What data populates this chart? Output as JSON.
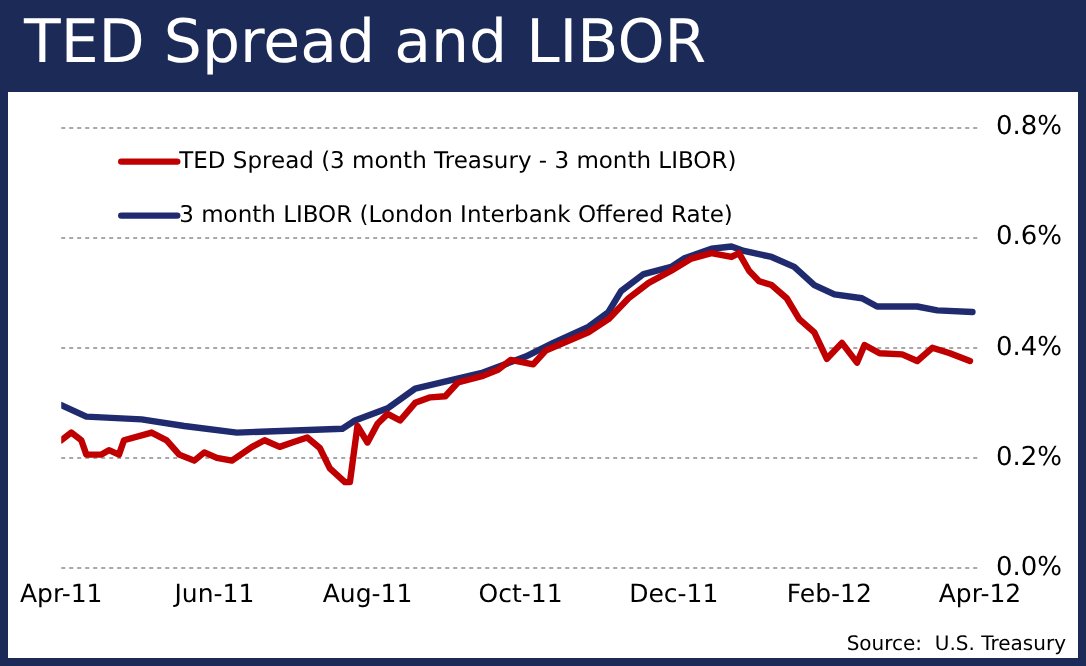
{
  "chart_data": {
    "type": "line",
    "title": "TED Spread and LIBOR",
    "series": [
      {
        "name": "TED Spread (3 month Treasury - 3 month LIBOR)",
        "color": "#c00000",
        "x": [
          "2011-04-01",
          "2011-04-05",
          "2011-04-09",
          "2011-04-11",
          "2011-04-17",
          "2011-04-20",
          "2011-04-24",
          "2011-04-26",
          "2011-05-07",
          "2011-05-13",
          "2011-05-18",
          "2011-05-24",
          "2011-05-28",
          "2011-06-02",
          "2011-06-08",
          "2011-06-16",
          "2011-06-21",
          "2011-06-27",
          "2011-07-02",
          "2011-07-08",
          "2011-07-13",
          "2011-07-17",
          "2011-07-23",
          "2011-07-25",
          "2011-07-28",
          "2011-08-01",
          "2011-08-05",
          "2011-08-09",
          "2011-08-14",
          "2011-08-20",
          "2011-08-26",
          "2011-09-01",
          "2011-09-06",
          "2011-09-16",
          "2011-09-22",
          "2011-09-27",
          "2011-10-06",
          "2011-10-11",
          "2011-10-28",
          "2011-11-05",
          "2011-11-13",
          "2011-11-21",
          "2011-11-30",
          "2011-12-08",
          "2011-12-16",
          "2011-12-24",
          "2011-12-27",
          "2011-12-31",
          "2012-01-04",
          "2012-01-09",
          "2012-01-15",
          "2012-01-20",
          "2012-01-26",
          "2012-01-31",
          "2012-02-06",
          "2012-02-12",
          "2012-02-15",
          "2012-02-21",
          "2012-03-01",
          "2012-03-07",
          "2012-03-13",
          "2012-03-20",
          "2012-03-28"
        ],
        "values": [
          0.232,
          0.246,
          0.232,
          0.206,
          0.206,
          0.214,
          0.206,
          0.232,
          0.246,
          0.232,
          0.206,
          0.195,
          0.21,
          0.2,
          0.195,
          0.22,
          0.232,
          0.22,
          0.228,
          0.237,
          0.218,
          0.181,
          0.156,
          0.156,
          0.258,
          0.228,
          0.262,
          0.28,
          0.268,
          0.3,
          0.31,
          0.312,
          0.337,
          0.349,
          0.36,
          0.378,
          0.37,
          0.395,
          0.428,
          0.452,
          0.49,
          0.518,
          0.54,
          0.562,
          0.572,
          0.565,
          0.572,
          0.54,
          0.521,
          0.514,
          0.49,
          0.452,
          0.428,
          0.38,
          0.409,
          0.373,
          0.405,
          0.39,
          0.388,
          0.376,
          0.4,
          0.39,
          0.376
        ]
      },
      {
        "name": "3 month LIBOR (London Interbank Offered Rate)",
        "color": "#1f2b6e",
        "x": [
          "2011-04-01",
          "2011-04-11",
          "2011-05-03",
          "2011-05-20",
          "2011-06-10",
          "2011-07-22",
          "2011-07-27",
          "2011-08-09",
          "2011-08-20",
          "2011-09-16",
          "2011-10-03",
          "2011-10-14",
          "2011-10-28",
          "2011-11-05",
          "2011-11-10",
          "2011-11-19",
          "2011-11-30",
          "2011-12-05",
          "2011-12-16",
          "2011-12-24",
          "2011-12-29",
          "2012-01-09",
          "2012-01-18",
          "2012-01-26",
          "2012-02-03",
          "2012-02-14",
          "2012-02-20",
          "2012-03-07",
          "2012-03-15",
          "2012-03-29"
        ],
        "values": [
          0.296,
          0.275,
          0.27,
          0.258,
          0.246,
          0.253,
          0.268,
          0.29,
          0.326,
          0.355,
          0.384,
          0.409,
          0.438,
          0.465,
          0.503,
          0.534,
          0.547,
          0.562,
          0.58,
          0.584,
          0.576,
          0.565,
          0.547,
          0.514,
          0.497,
          0.49,
          0.475,
          0.475,
          0.468,
          0.465
        ]
      }
    ],
    "xlim": [
      "2011-04-01",
      "2012-04-01"
    ],
    "xticks": [
      {
        "value": "2011-04-01",
        "label": "Apr-11"
      },
      {
        "value": "2011-06-01",
        "label": "Jun-11"
      },
      {
        "value": "2011-08-01",
        "label": "Aug-11"
      },
      {
        "value": "2011-10-01",
        "label": "Oct-11"
      },
      {
        "value": "2011-12-01",
        "label": "Dec-11"
      },
      {
        "value": "2012-02-01",
        "label": "Feb-12"
      },
      {
        "value": "2012-04-01",
        "label": "Apr-12"
      }
    ],
    "ylim": [
      0,
      0.8
    ],
    "yticks": [
      {
        "value": 0,
        "label": "0.0%"
      },
      {
        "value": 0.2,
        "label": "0.2%"
      },
      {
        "value": 0.4,
        "label": "0.4%"
      },
      {
        "value": 0.6,
        "label": "0.6%"
      },
      {
        "value": 0.8,
        "label": "0.8%"
      }
    ],
    "grid": "y",
    "legend": "top left",
    "marker": "none",
    "line_style": "solid",
    "annotations": [
      "Source:  U.S. Treasury"
    ]
  }
}
